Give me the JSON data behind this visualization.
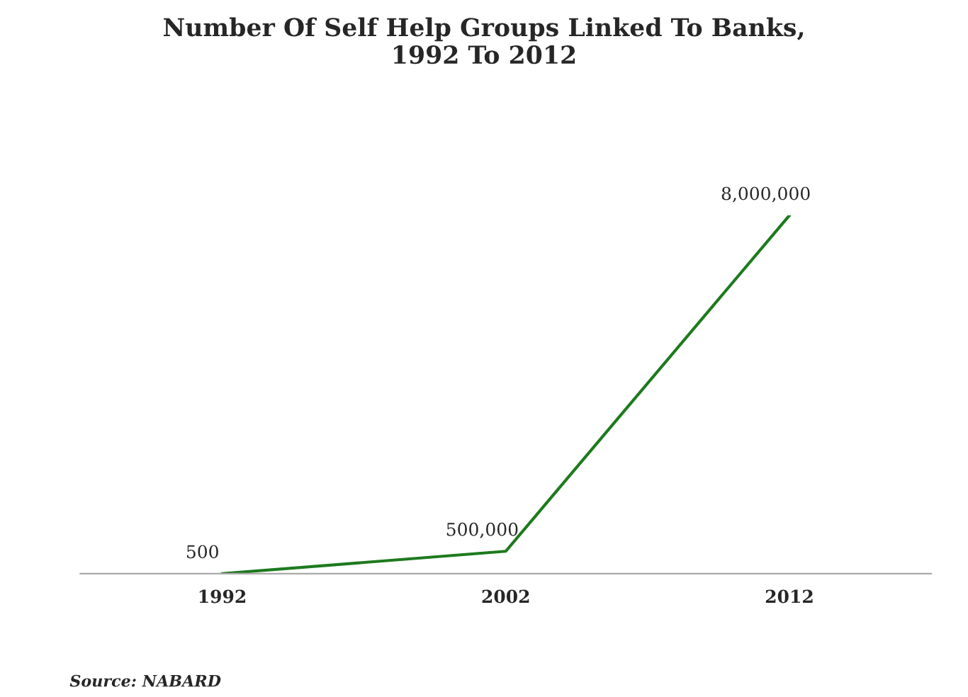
{
  "chart_data": {
    "type": "line",
    "title": "Number Of Self Help Groups Linked To Banks,\n1992 To 2012",
    "categories": [
      "1992",
      "2002",
      "2012"
    ],
    "series": [
      {
        "color": "#1e7a1e",
        "values": [
          500,
          500000,
          8000000
        ],
        "value_labels": [
          "500",
          "500,000",
          "8,000,000"
        ]
      }
    ],
    "grid": false,
    "legend": false,
    "marker": "none",
    "line_style": "solid",
    "annotations": [
      "Source: NABARD"
    ]
  }
}
